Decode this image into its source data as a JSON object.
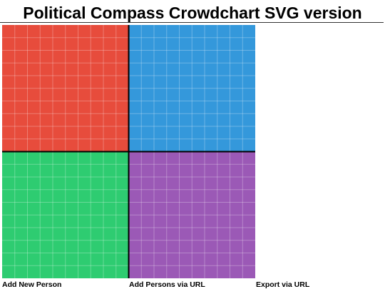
{
  "header": {
    "title": "Political Compass Crowdchart SVG version"
  },
  "compass": {
    "quadrants": [
      {
        "name": "top-left",
        "color": "#e74c3c"
      },
      {
        "name": "top-right",
        "color": "#3498db"
      },
      {
        "name": "bottom-left",
        "color": "#2ecc71"
      },
      {
        "name": "bottom-right",
        "color": "#9b59b6"
      }
    ],
    "grid_divisions": 20,
    "grid_color": "#ffffff",
    "axis_color": "#000000"
  },
  "actions": {
    "add_new_person": "Add New Person",
    "add_persons_via_url": "Add Persons via URL",
    "export_via_url": "Export via URL"
  }
}
